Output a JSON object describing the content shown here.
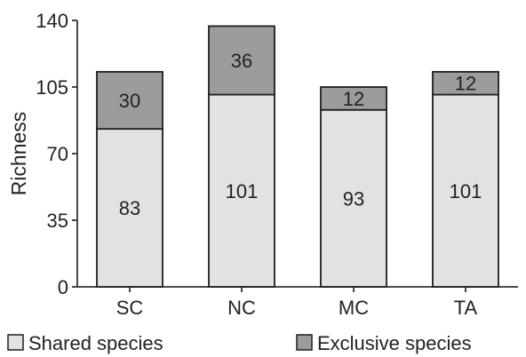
{
  "chart_data": {
    "type": "bar",
    "stacked": true,
    "title": "",
    "xlabel": "",
    "ylabel": "Richness",
    "ylim": [
      0,
      140
    ],
    "yticks": [
      0,
      35,
      70,
      105,
      140
    ],
    "grid": false,
    "legend_position": "bottom",
    "categories": [
      "SC",
      "NC",
      "MC",
      "TA"
    ],
    "series": [
      {
        "name": "Shared species",
        "values": [
          83,
          101,
          93,
          101
        ],
        "color": "#e2e2e2"
      },
      {
        "name": "Exclusive species",
        "values": [
          30,
          36,
          12,
          12
        ],
        "color": "#9c9c9c"
      }
    ]
  }
}
